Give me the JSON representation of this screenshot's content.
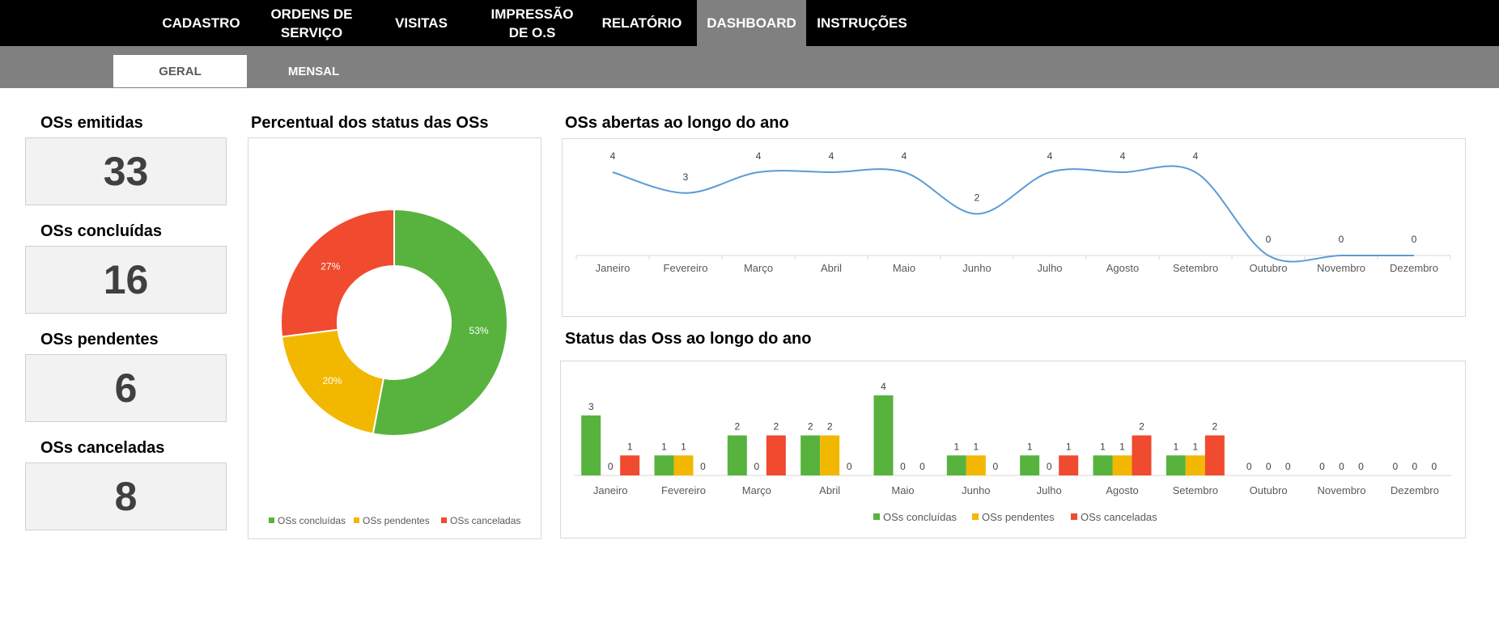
{
  "nav": {
    "items": [
      {
        "label": "CADASTRO",
        "active": false
      },
      {
        "label": "ORDENS DE\nSERVIÇO",
        "active": false
      },
      {
        "label": "VISITAS",
        "active": false
      },
      {
        "label": "IMPRESSÃO\nDE O.S",
        "active": false
      },
      {
        "label": "RELATÓRIO",
        "active": false
      },
      {
        "label": "DASHBOARD",
        "active": true
      },
      {
        "label": "INSTRUÇÕES",
        "active": false
      }
    ]
  },
  "subnav": {
    "tabs": [
      {
        "label": "GERAL",
        "active": true
      },
      {
        "label": "MENSAL",
        "active": false
      }
    ]
  },
  "kpis": [
    {
      "title": "OSs emitidas",
      "value": "33"
    },
    {
      "title": "OSs concluídas",
      "value": "16"
    },
    {
      "title": "OSs pendentes",
      "value": "6"
    },
    {
      "title": "OSs canceladas",
      "value": "8"
    }
  ],
  "colors": {
    "concluidas": "#57b33e",
    "pendentes": "#f2b800",
    "canceladas": "#f04a2f",
    "line": "#5b9bd5",
    "active_tab_bg": "#808080"
  },
  "chart_data": [
    {
      "type": "pie",
      "title": "Percentual dos status das OSs",
      "style": "donut",
      "labels": [
        "OSs concluídas",
        "OSs pendentes",
        "OSs canceladas"
      ],
      "values": [
        53,
        20,
        27
      ],
      "value_labels": [
        "53%",
        "20%",
        "27%"
      ],
      "legend": "bottom"
    },
    {
      "type": "line",
      "title": "OSs abertas ao longo do ano",
      "smooth": true,
      "categories": [
        "Janeiro",
        "Fevereiro",
        "Março",
        "Abril",
        "Maio",
        "Junho",
        "Julho",
        "Agosto",
        "Setembro",
        "Outubro",
        "Novembro",
        "Dezembro"
      ],
      "values": [
        4,
        3,
        4,
        4,
        4,
        2,
        4,
        4,
        4,
        0,
        0,
        0
      ],
      "ylim": [
        0,
        4
      ]
    },
    {
      "type": "bar",
      "title": "Status das Oss ao longo do ano",
      "categories": [
        "Janeiro",
        "Fevereiro",
        "Março",
        "Abril",
        "Maio",
        "Junho",
        "Julho",
        "Agosto",
        "Setembro",
        "Outubro",
        "Novembro",
        "Dezembro"
      ],
      "series": [
        {
          "name": "OSs concluídas",
          "values": [
            3,
            1,
            2,
            2,
            4,
            1,
            1,
            1,
            1,
            0,
            0,
            0
          ]
        },
        {
          "name": "OSs pendentes",
          "values": [
            0,
            1,
            0,
            2,
            0,
            1,
            0,
            1,
            1,
            0,
            0,
            0
          ]
        },
        {
          "name": "OSs canceladas",
          "values": [
            1,
            0,
            2,
            0,
            0,
            0,
            1,
            2,
            2,
            0,
            0,
            0
          ]
        }
      ],
      "ylim": [
        0,
        4
      ],
      "legend": "bottom"
    }
  ]
}
